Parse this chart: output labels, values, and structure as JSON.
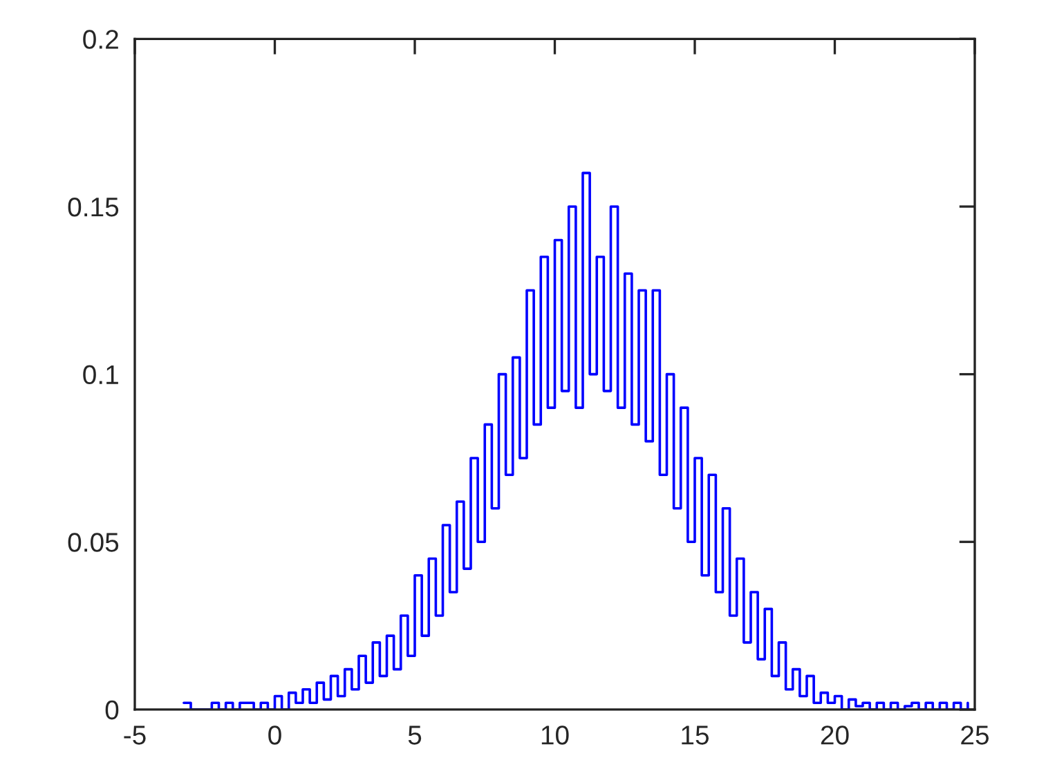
{
  "chart_data": {
    "type": "step",
    "x": [
      -3.25,
      -3.0,
      -2.75,
      -2.5,
      -2.25,
      -2.0,
      -1.75,
      -1.5,
      -1.25,
      -1.0,
      -0.75,
      -0.5,
      -0.25,
      0,
      0.25,
      0.5,
      0.75,
      1.0,
      1.25,
      1.5,
      1.75,
      2.0,
      2.25,
      2.5,
      2.75,
      3.0,
      3.25,
      3.5,
      3.75,
      4.0,
      4.25,
      4.5,
      4.75,
      5.0,
      5.25,
      5.5,
      5.75,
      6.0,
      6.25,
      6.5,
      6.75,
      7.0,
      7.25,
      7.5,
      7.75,
      8.0,
      8.25,
      8.5,
      8.75,
      9.0,
      9.25,
      9.5,
      9.75,
      10.0,
      10.25,
      10.5,
      10.75,
      11.0,
      11.25,
      11.5,
      11.75,
      12.0,
      12.25,
      12.5,
      12.75,
      13.0,
      13.25,
      13.5,
      13.75,
      14.0,
      14.25,
      14.5,
      14.75,
      15.0,
      15.25,
      15.5,
      15.75,
      16.0,
      16.25,
      16.5,
      16.75,
      17.0,
      17.25,
      17.5,
      17.75,
      18.0,
      18.25,
      18.5,
      18.75,
      19.0,
      19.25,
      19.5,
      19.75,
      20.0,
      20.25,
      20.5,
      20.75,
      21.0,
      21.25,
      21.5,
      21.75,
      22.0,
      22.25,
      22.5,
      22.75,
      23.0,
      23.25,
      23.5,
      23.75,
      24.0,
      24.25,
      24.5,
      24.75
    ],
    "series": [
      {
        "color": "#0000ff",
        "values": [
          0.002,
          0,
          0,
          0,
          0.002,
          0,
          0.002,
          0,
          0.002,
          0.002,
          0,
          0.002,
          0,
          0.004,
          0,
          0.005,
          0.002,
          0.006,
          0.002,
          0.008,
          0.003,
          0.01,
          0.004,
          0.012,
          0.006,
          0.016,
          0.008,
          0.02,
          0.01,
          0.022,
          0.012,
          0.028,
          0.016,
          0.04,
          0.022,
          0.045,
          0.028,
          0.055,
          0.035,
          0.062,
          0.042,
          0.075,
          0.05,
          0.085,
          0.06,
          0.1,
          0.07,
          0.105,
          0.075,
          0.125,
          0.085,
          0.135,
          0.09,
          0.14,
          0.095,
          0.15,
          0.09,
          0.16,
          0.1,
          0.135,
          0.095,
          0.15,
          0.09,
          0.13,
          0.085,
          0.125,
          0.08,
          0.125,
          0.07,
          0.1,
          0.06,
          0.09,
          0.05,
          0.075,
          0.04,
          0.07,
          0.035,
          0.06,
          0.028,
          0.045,
          0.02,
          0.035,
          0.015,
          0.03,
          0.01,
          0.02,
          0.006,
          0.012,
          0.004,
          0.01,
          0.002,
          0.005,
          0.002,
          0.004,
          0,
          0.003,
          0.001,
          0.002,
          0,
          0.002,
          0,
          0.002,
          0,
          0.001,
          0.002,
          0,
          0.002,
          0,
          0.002,
          0,
          0.002,
          0,
          0.002
        ]
      }
    ],
    "xlim": [
      -5,
      25
    ],
    "xticks": [
      -5,
      0,
      5,
      10,
      15,
      20,
      25
    ],
    "ylim": [
      0,
      0.2
    ],
    "yticks": [
      0,
      0.05,
      0.1,
      0.15,
      0.2
    ],
    "grid": false,
    "legend": false
  }
}
